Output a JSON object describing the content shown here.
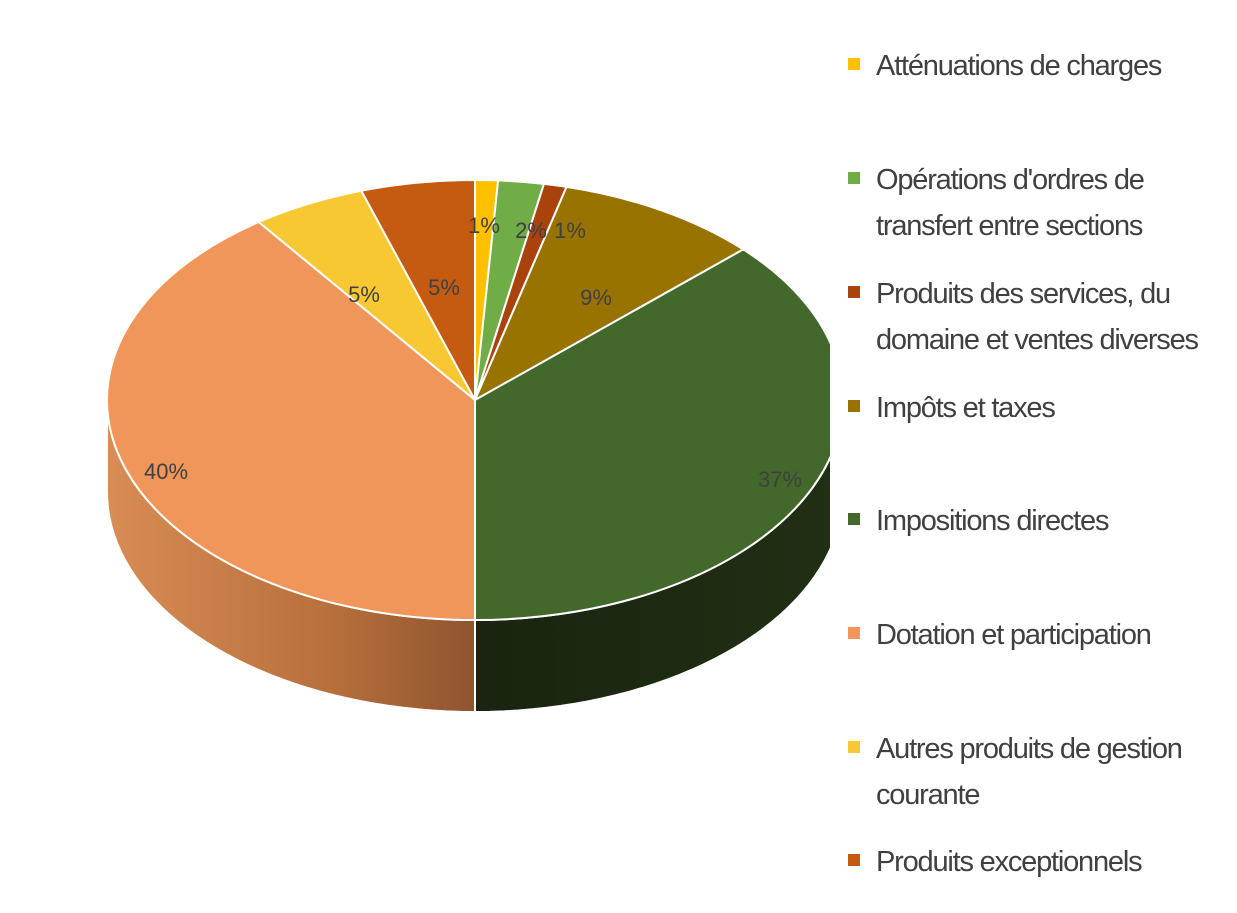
{
  "chart_data": {
    "type": "pie",
    "style": "3d",
    "categories": [
      "Atténuations de charges",
      "Opérations d'ordres de transfert entre sections",
      "Produits des services, du domaine et ventes diverses",
      "Impôts et taxes",
      "Impositions directes",
      "Dotation et participation",
      "Autres produits de gestion courante",
      "Produits exceptionnels"
    ],
    "values": [
      1,
      2,
      1,
      9,
      37,
      40,
      5,
      5
    ],
    "data_labels": [
      "1%",
      "2%",
      "1%",
      "9%",
      "37%",
      "40%",
      "5%",
      "5%"
    ],
    "colors": [
      "#FFC000",
      "#70AD47",
      "#A9420B",
      "#997300",
      "#43682B",
      "#F0965A",
      "#F8C832",
      "#C55A11"
    ],
    "legend_position": "right"
  },
  "legend": {
    "items": [
      {
        "label": "Atténuations de charges",
        "color": "#FFC000"
      },
      {
        "label": "Opérations d'ordres de transfert entre sections",
        "color": "#70AD47"
      },
      {
        "label": "Produits des services, du domaine et ventes diverses",
        "color": "#A9420B"
      },
      {
        "label": "Impôts et taxes",
        "color": "#997300"
      },
      {
        "label": "Impositions directes",
        "color": "#43682B"
      },
      {
        "label": "Dotation et participation",
        "color": "#F0965A"
      },
      {
        "label": "Autres produits de gestion courante",
        "color": "#F8C832"
      },
      {
        "label": "Produits exceptionnels",
        "color": "#C55A11"
      }
    ]
  }
}
